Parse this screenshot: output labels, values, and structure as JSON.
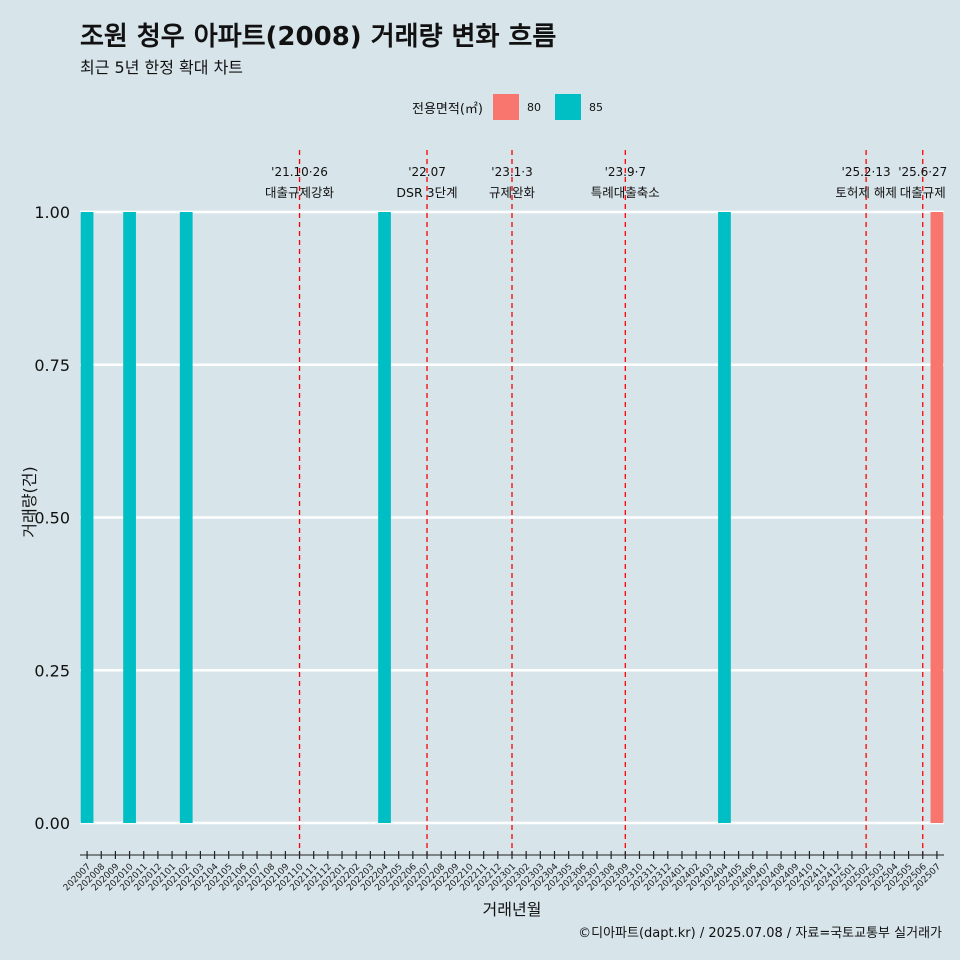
{
  "title": "조원 청우 아파트(2008) 거래량 변화 흐름",
  "subtitle": "최근 5년 한정 확대 차트",
  "legend": {
    "title": "전용면적(㎡)",
    "items": [
      {
        "label": "80",
        "color": "#f8766d"
      },
      {
        "label": "85",
        "color": "#00bfc4"
      }
    ]
  },
  "caption": "©디아파트(dapt.kr) / 2025.07.08 / 자료=국토교통부 실거래가",
  "chart_data": {
    "type": "bar",
    "xlabel": "거래년월",
    "ylabel": "거래량(건)",
    "ylim": [
      0,
      1
    ],
    "yticks": [
      "0.00",
      "0.25",
      "0.50",
      "0.75",
      "1.00"
    ],
    "grid": true,
    "legend_position": "top",
    "categories": [
      "202007",
      "202008",
      "202009",
      "202010",
      "202011",
      "202012",
      "202101",
      "202102",
      "202103",
      "202104",
      "202105",
      "202106",
      "202107",
      "202108",
      "202109",
      "202110",
      "202111",
      "202112",
      "202201",
      "202202",
      "202203",
      "202204",
      "202205",
      "202206",
      "202207",
      "202208",
      "202209",
      "202210",
      "202211",
      "202212",
      "202301",
      "202302",
      "202303",
      "202304",
      "202305",
      "202306",
      "202307",
      "202308",
      "202309",
      "202310",
      "202311",
      "202312",
      "202401",
      "202402",
      "202403",
      "202404",
      "202405",
      "202406",
      "202407",
      "202408",
      "202409",
      "202410",
      "202411",
      "202412",
      "202501",
      "202502",
      "202503",
      "202504",
      "202505",
      "202506",
      "202507"
    ],
    "series": [
      {
        "name": "80",
        "color": "#f8766d",
        "values": {
          "202507": 1
        }
      },
      {
        "name": "85",
        "color": "#00bfc4",
        "values": {
          "202007": 1,
          "202010": 1,
          "202102": 1,
          "202204": 1,
          "202404": 1
        }
      }
    ],
    "annotations": [
      {
        "x": "202110",
        "line1": "'21.10·26",
        "line2": "대출규제강화"
      },
      {
        "x": "202207",
        "line1": "'22.07",
        "line2": "DSR 3단계"
      },
      {
        "x": "202301",
        "line1": "'23.1·3",
        "line2": "규제완화"
      },
      {
        "x": "202309",
        "line1": "'23.9·7",
        "line2": "특례대출축소"
      },
      {
        "x": "202502",
        "line1": "'25.2·13",
        "line2": "토허제 해제"
      },
      {
        "x": "202506",
        "line1": "'25.6·27",
        "line2": "대출규제"
      }
    ]
  }
}
